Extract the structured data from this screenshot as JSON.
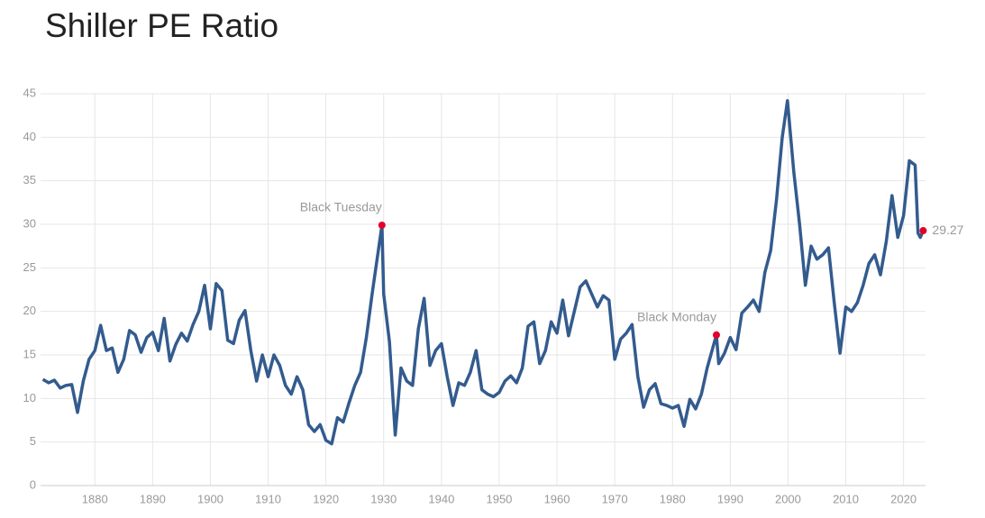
{
  "chart_data": {
    "type": "line",
    "title": "Shiller PE Ratio",
    "x": [
      1871,
      1872,
      1873,
      1874,
      1875,
      1876,
      1877,
      1878,
      1879,
      1880,
      1881,
      1882,
      1883,
      1884,
      1885,
      1886,
      1887,
      1888,
      1889,
      1890,
      1891,
      1892,
      1893,
      1894,
      1895,
      1896,
      1897,
      1898,
      1899,
      1900,
      1901,
      1902,
      1903,
      1904,
      1905,
      1906,
      1907,
      1908,
      1909,
      1910,
      1911,
      1912,
      1913,
      1914,
      1915,
      1916,
      1917,
      1918,
      1919,
      1920,
      1921,
      1922,
      1923,
      1924,
      1925,
      1926,
      1927,
      1928,
      1929.7,
      1930,
      1931,
      1932,
      1933,
      1934,
      1935,
      1936,
      1937,
      1938,
      1939,
      1940,
      1941,
      1942,
      1943,
      1944,
      1945,
      1946,
      1947,
      1948,
      1949,
      1950,
      1951,
      1952,
      1953,
      1954,
      1955,
      1956,
      1957,
      1958,
      1959,
      1960,
      1961,
      1962,
      1963,
      1964,
      1965,
      1966,
      1967,
      1968,
      1969,
      1970,
      1971,
      1972,
      1973,
      1974,
      1975,
      1976,
      1977,
      1978,
      1979,
      1980,
      1981,
      1982,
      1983,
      1984,
      1985,
      1986,
      1987.6,
      1988,
      1989,
      1990,
      1991,
      1992,
      1993,
      1994,
      1995,
      1996,
      1997,
      1998,
      1999,
      1999.9,
      2001,
      2002,
      2003,
      2004,
      2005,
      2006,
      2007,
      2008,
      2009,
      2010,
      2011,
      2012,
      2013,
      2014,
      2015,
      2016,
      2017,
      2018,
      2019,
      2020,
      2021,
      2022,
      2022.5,
      2022.9,
      2023.4
    ],
    "series": [
      {
        "name": "Shiller PE Ratio",
        "color": "#335b8e",
        "values": [
          12.2,
          11.8,
          12.1,
          11.2,
          11.5,
          11.6,
          8.4,
          12.0,
          14.5,
          15.5,
          18.4,
          15.5,
          15.8,
          13.0,
          14.5,
          17.8,
          17.3,
          15.3,
          17.0,
          17.6,
          15.5,
          19.2,
          14.3,
          16.2,
          17.5,
          16.6,
          18.5,
          20.0,
          23.0,
          18.0,
          23.2,
          22.4,
          16.7,
          16.3,
          19.0,
          20.1,
          15.5,
          12.0,
          15.0,
          12.5,
          15.0,
          13.8,
          11.5,
          10.5,
          12.5,
          11.0,
          7.0,
          6.2,
          7.0,
          5.2,
          4.8,
          7.8,
          7.3,
          9.5,
          11.5,
          13.0,
          17.0,
          22.0,
          29.9,
          22.0,
          16.5,
          5.8,
          13.5,
          12.0,
          11.5,
          18.0,
          21.5,
          13.8,
          15.5,
          16.3,
          12.5,
          9.2,
          11.8,
          11.5,
          13.0,
          15.5,
          11.0,
          10.5,
          10.2,
          10.7,
          12.0,
          12.6,
          11.8,
          13.5,
          18.3,
          18.8,
          14.0,
          15.5,
          18.8,
          17.5,
          21.3,
          17.2,
          20.0,
          22.8,
          23.5,
          22.0,
          20.5,
          21.8,
          21.3,
          14.5,
          16.8,
          17.5,
          18.5,
          12.5,
          9.0,
          11.0,
          11.7,
          9.4,
          9.2,
          8.9,
          9.2,
          6.8,
          9.9,
          8.8,
          10.5,
          13.5,
          17.3,
          14.0,
          15.2,
          17.0,
          15.6,
          19.8,
          20.5,
          21.3,
          20.0,
          24.5,
          27.0,
          32.8,
          40.0,
          44.2,
          36.0,
          30.0,
          23.0,
          27.5,
          26.0,
          26.5,
          27.3,
          21.0,
          15.2,
          20.5,
          20.0,
          21.0,
          23.0,
          25.5,
          26.5,
          24.2,
          28.0,
          33.3,
          28.5,
          31.0,
          37.3,
          36.8,
          29.0,
          28.5,
          29.27
        ]
      }
    ],
    "markers": [
      {
        "label": "Black Tuesday",
        "x": 1929.7,
        "y": 29.9,
        "color": "#e4002b"
      },
      {
        "label": "Black Monday",
        "x": 1987.6,
        "y": 17.3,
        "color": "#e4002b"
      },
      {
        "x": 2023.4,
        "y": 29.27,
        "color": "#e4002b"
      }
    ],
    "xlim": [
      1870.6,
      2023.8
    ],
    "xticks": [
      1880,
      1890,
      1900,
      1910,
      1920,
      1930,
      1940,
      1950,
      1960,
      1970,
      1980,
      1990,
      2000,
      2010,
      2020
    ],
    "ylim": [
      0,
      45
    ],
    "yticks": [
      0,
      5,
      10,
      15,
      20,
      25,
      30,
      35,
      40,
      45
    ],
    "grid": true
  }
}
